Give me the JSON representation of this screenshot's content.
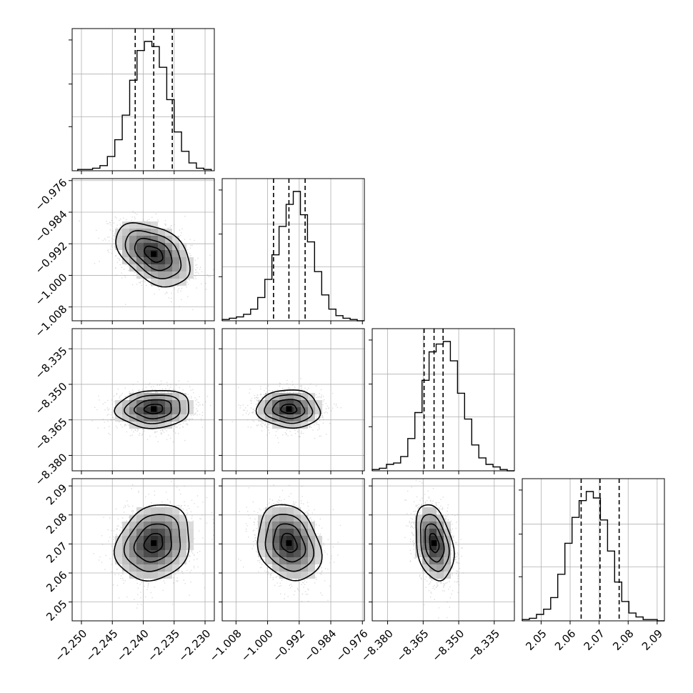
{
  "chart_data": {
    "type": "corner",
    "grid": true,
    "n_parameters": 4,
    "parameters": [
      {
        "index": 0,
        "range": [
          -2.2515,
          -2.2285
        ],
        "ticks": [
          -2.25,
          -2.245,
          -2.24,
          -2.235,
          -2.23
        ],
        "tick_labels": [
          "−2.250",
          "−2.245",
          "−2.240",
          "−2.235",
          "−2.230"
        ],
        "quantiles": [
          -2.2413,
          -2.2383,
          -2.2353
        ],
        "bin_edges_start": -2.2506,
        "bin_width": 0.0012,
        "hist": [
          1,
          1,
          2,
          4,
          11,
          24,
          43,
          70,
          93,
          100,
          96,
          80,
          55,
          30,
          15,
          6,
          2,
          1
        ]
      },
      {
        "index": 1,
        "range": [
          -1.0115,
          -0.9755
        ],
        "ticks": [
          -1.008,
          -1.0,
          -0.992,
          -0.984,
          -0.976
        ],
        "tick_labels": [
          "−1.008",
          "−1.000",
          "−0.992",
          "−0.984",
          "−0.976"
        ],
        "quantiles": [
          -0.9985,
          -0.9946,
          -0.9905
        ],
        "bin_edges_start": -1.0115,
        "bin_width": 0.0018,
        "hist": [
          1,
          2,
          3,
          5,
          9,
          18,
          32,
          51,
          73,
          90,
          100,
          82,
          61,
          38,
          20,
          9,
          4,
          2,
          1,
          0
        ]
      },
      {
        "index": 2,
        "range": [
          -8.3865,
          -8.3265
        ],
        "ticks": [
          -8.38,
          -8.365,
          -8.35,
          -8.335
        ],
        "tick_labels": [
          "−8.380",
          "−8.365",
          "−8.350",
          "−8.335"
        ],
        "quantiles": [
          -8.3646,
          -8.3604,
          -8.3566
        ],
        "bin_edges_start": -8.3865,
        "bin_width": 0.003,
        "hist": [
          1,
          2,
          5,
          6,
          11,
          25,
          45,
          70,
          92,
          98,
          100,
          85,
          60,
          40,
          20,
          10,
          5,
          3,
          1,
          0
        ]
      },
      {
        "index": 3,
        "range": [
          2.0435,
          2.0925
        ],
        "ticks": [
          2.05,
          2.06,
          2.07,
          2.08,
          2.09
        ],
        "tick_labels": [
          "2.05",
          "2.06",
          "2.07",
          "2.08",
          "2.09"
        ],
        "quantiles": [
          2.0638,
          2.0703,
          2.0769
        ],
        "bin_edges_start": 2.0435,
        "bin_width": 0.00245,
        "hist": [
          1,
          2,
          5,
          9,
          18,
          36,
          60,
          80,
          93,
          100,
          95,
          78,
          54,
          30,
          15,
          6,
          3,
          1,
          1,
          0
        ]
      }
    ],
    "pairs": [
      {
        "row": 1,
        "col": 0,
        "mean": [
          -2.2383,
          -0.9946
        ],
        "correlation": -0.42
      },
      {
        "row": 2,
        "col": 0,
        "mean": [
          -2.2383,
          -8.3604
        ],
        "correlation": 0.08
      },
      {
        "row": 2,
        "col": 1,
        "mean": [
          -0.9946,
          -8.3604
        ],
        "correlation": -0.05
      },
      {
        "row": 3,
        "col": 0,
        "mean": [
          -2.2383,
          2.0703
        ],
        "correlation": 0.18
      },
      {
        "row": 3,
        "col": 1,
        "mean": [
          -0.9946,
          2.0703
        ],
        "correlation": -0.22
      },
      {
        "row": 3,
        "col": 2,
        "mean": [
          -8.3604,
          2.0703
        ],
        "correlation": -0.3
      }
    ],
    "contour_levels_sigma": [
      0.5,
      1.0,
      1.5,
      2.0
    ]
  }
}
